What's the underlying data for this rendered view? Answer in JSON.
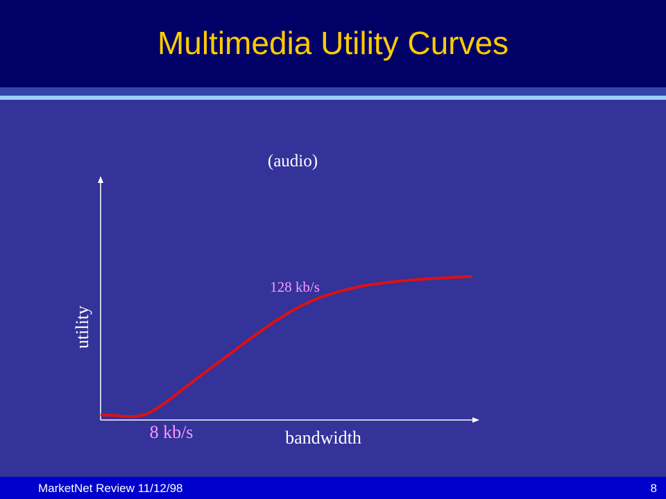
{
  "header": {
    "title": "Multimedia Utility Curves"
  },
  "diagram": {
    "caption": "(audio)",
    "y_label": "utility",
    "x_label": "bandwidth",
    "annotations": [
      "128 kb/s",
      "8 kb/s"
    ]
  },
  "footer": {
    "left": "MarketNet Review 11/12/98",
    "page": "8"
  }
}
